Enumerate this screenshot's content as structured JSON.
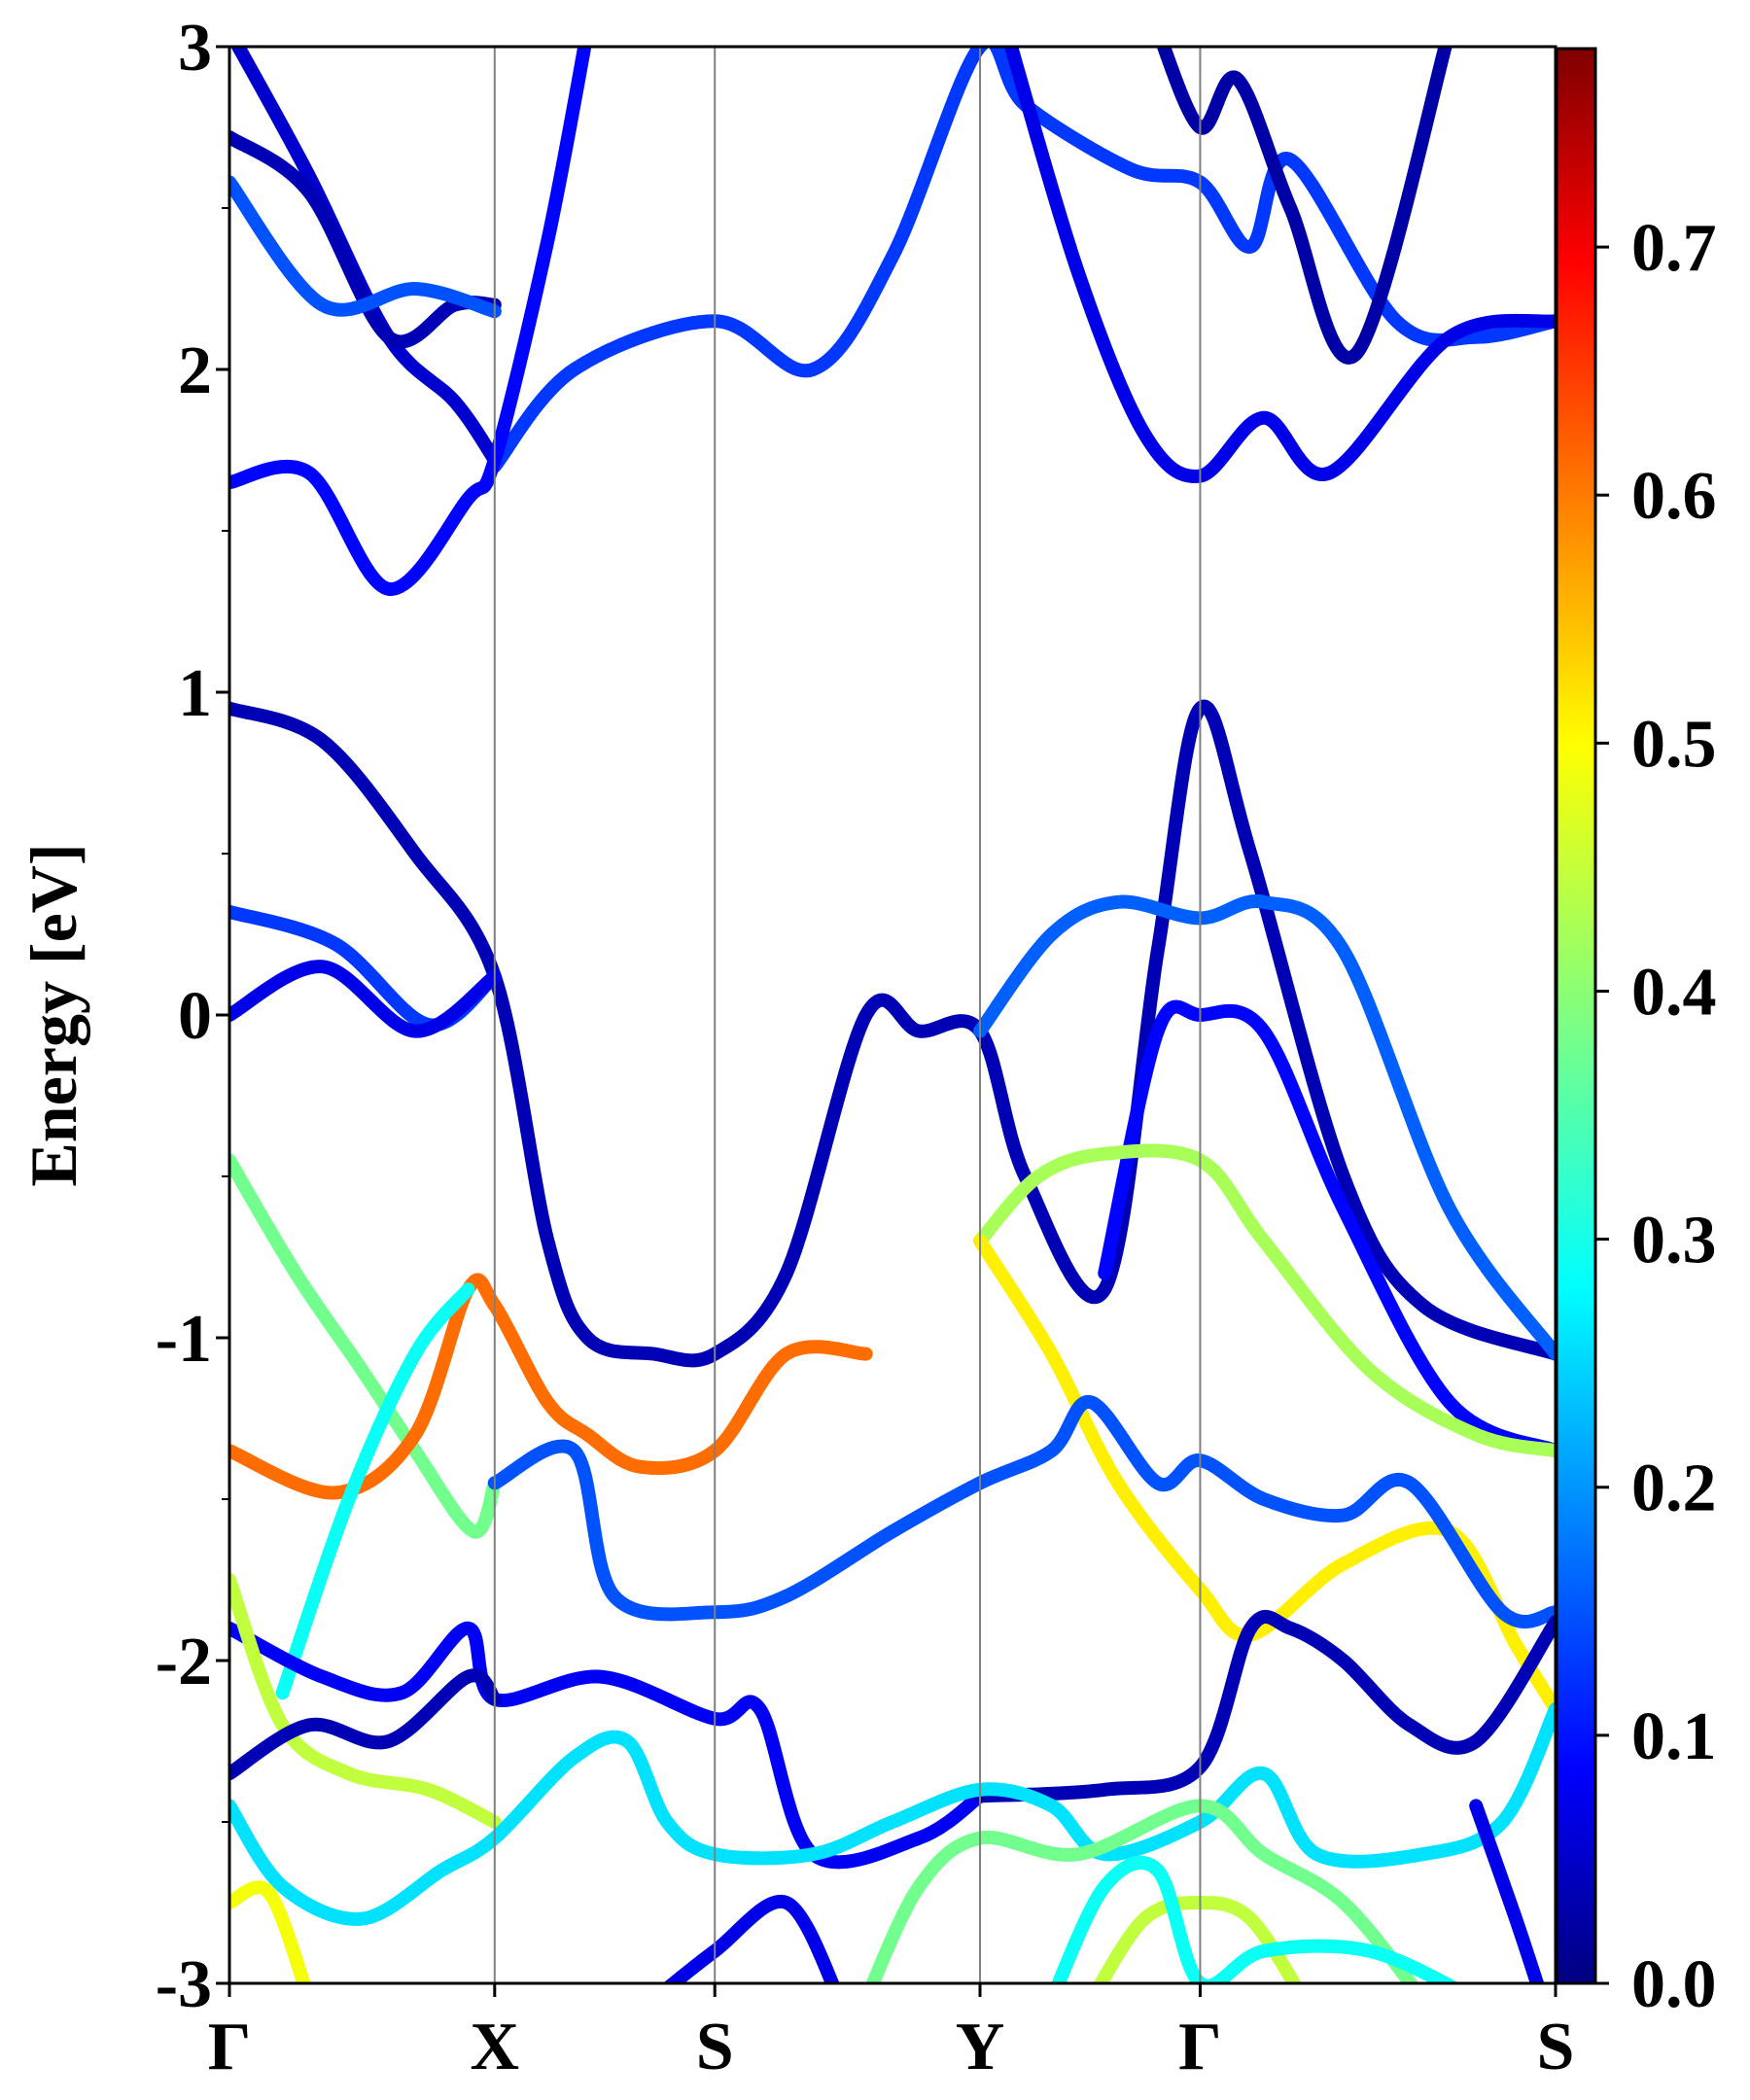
{
  "chart_data": {
    "type": "line",
    "title": "",
    "xlabel": "",
    "ylabel": "Energy [eV]",
    "ylim": [
      -3,
      3
    ],
    "yticks": [
      {
        "value": 3,
        "label": "3"
      },
      {
        "value": 2,
        "label": "2"
      },
      {
        "value": 1,
        "label": "1"
      },
      {
        "value": 0,
        "label": "0"
      },
      {
        "value": -1,
        "label": "-1"
      },
      {
        "value": -2,
        "label": "-2"
      },
      {
        "value": -3,
        "label": "-3"
      }
    ],
    "k_points": [
      {
        "label": "Γ",
        "position": 0.0
      },
      {
        "label": "X",
        "position": 1.0
      },
      {
        "label": "S",
        "position": 1.83
      },
      {
        "label": "Y",
        "position": 2.83
      },
      {
        "label": "Γ",
        "position": 3.66
      },
      {
        "label": "S",
        "position": 5.0
      }
    ],
    "colorbar": {
      "colormap": "jet",
      "range": [
        0.0,
        0.78
      ],
      "ticks": [
        {
          "value": 0.0,
          "label": "0.0"
        },
        {
          "value": 0.1,
          "label": "0.1"
        },
        {
          "value": 0.2,
          "label": "0.2"
        },
        {
          "value": 0.3,
          "label": "0.3"
        },
        {
          "value": 0.4,
          "label": "0.4"
        },
        {
          "value": 0.5,
          "label": "0.5"
        },
        {
          "value": 0.6,
          "label": "0.6"
        },
        {
          "value": 0.7,
          "label": "0.7"
        }
      ]
    },
    "series": [
      {
        "name": "cb-high-a",
        "weight": 0.06,
        "points": [
          [
            0,
            3.05
          ],
          [
            0.3,
            2.6
          ],
          [
            0.6,
            2.1
          ],
          [
            0.85,
            1.9
          ],
          [
            1.0,
            1.72
          ]
        ]
      },
      {
        "name": "cb-high-b",
        "weight": 0.04,
        "points": [
          [
            0,
            2.72
          ],
          [
            0.3,
            2.55
          ],
          [
            0.6,
            2.1
          ],
          [
            0.85,
            2.2
          ],
          [
            1.0,
            2.2
          ]
        ]
      },
      {
        "name": "cb-high-c",
        "weight": 0.16,
        "points": [
          [
            0,
            2.58
          ],
          [
            0.35,
            2.2
          ],
          [
            0.7,
            2.25
          ],
          [
            1.0,
            2.18
          ]
        ]
      },
      {
        "name": "cb-x-s-y",
        "weight": 0.14,
        "points": [
          [
            1.0,
            1.7
          ],
          [
            1.3,
            2.0
          ],
          [
            1.83,
            2.15
          ],
          [
            2.2,
            2.0
          ],
          [
            2.5,
            2.35
          ],
          [
            2.83,
            3.0
          ],
          [
            3.0,
            2.82
          ],
          [
            3.4,
            2.62
          ],
          [
            3.66,
            2.58
          ],
          [
            3.85,
            2.38
          ],
          [
            4.0,
            2.65
          ],
          [
            4.4,
            2.15
          ],
          [
            4.7,
            2.1
          ],
          [
            5.0,
            2.15
          ]
        ]
      },
      {
        "name": "cb-upper-left",
        "weight": 0.1,
        "points": [
          [
            0,
            1.65
          ],
          [
            0.3,
            1.68
          ],
          [
            0.6,
            1.32
          ],
          [
            0.9,
            1.6
          ],
          [
            1.0,
            1.72
          ],
          [
            1.2,
            2.4
          ],
          [
            1.35,
            3.05
          ]
        ]
      },
      {
        "name": "cb-y-gamma-a",
        "weight": 0.08,
        "points": [
          [
            2.93,
            3.05
          ],
          [
            3.2,
            2.3
          ],
          [
            3.45,
            1.8
          ],
          [
            3.66,
            1.67
          ],
          [
            3.9,
            1.85
          ],
          [
            4.15,
            1.68
          ],
          [
            4.6,
            2.1
          ],
          [
            5.0,
            2.15
          ]
        ]
      },
      {
        "name": "cb-gamma-top",
        "weight": 0.03,
        "points": [
          [
            3.5,
            3.05
          ],
          [
            3.66,
            2.75
          ],
          [
            3.8,
            2.9
          ],
          [
            4.0,
            2.5
          ],
          [
            4.25,
            2.05
          ],
          [
            4.6,
            3.05
          ]
        ]
      },
      {
        "name": "band-gx-0.95",
        "weight": 0.04,
        "points": [
          [
            0,
            0.95
          ],
          [
            0.35,
            0.85
          ],
          [
            0.7,
            0.5
          ],
          [
            1.0,
            0.12
          ],
          [
            1.2,
            -0.7
          ],
          [
            1.35,
            -1.0
          ],
          [
            1.6,
            -1.05
          ],
          [
            1.83,
            -1.05
          ],
          [
            2.1,
            -0.8
          ],
          [
            2.4,
            0.0
          ],
          [
            2.6,
            -0.05
          ],
          [
            2.83,
            -0.05
          ],
          [
            3.0,
            -0.5
          ],
          [
            3.3,
            -0.85
          ],
          [
            3.5,
            0.2
          ],
          [
            3.66,
            0.95
          ],
          [
            3.85,
            0.5
          ],
          [
            4.2,
            -0.5
          ],
          [
            4.5,
            -0.9
          ],
          [
            5.0,
            -1.05
          ]
        ]
      },
      {
        "name": "band-gx-0.3",
        "weight": 0.14,
        "points": [
          [
            0,
            0.32
          ],
          [
            0.4,
            0.22
          ],
          [
            0.75,
            -0.03
          ],
          [
            1.0,
            0.12
          ]
        ]
      },
      {
        "name": "band-gx-0.0",
        "weight": 0.08,
        "points": [
          [
            0,
            0.0
          ],
          [
            0.35,
            0.15
          ],
          [
            0.7,
            -0.05
          ],
          [
            1.0,
            0.12
          ]
        ]
      },
      {
        "name": "band-y-gamma-0.3",
        "weight": 0.17,
        "points": [
          [
            2.83,
            -0.05
          ],
          [
            3.1,
            0.25
          ],
          [
            3.35,
            0.35
          ],
          [
            3.66,
            0.3
          ],
          [
            3.9,
            0.35
          ],
          [
            4.2,
            0.2
          ],
          [
            4.6,
            -0.6
          ],
          [
            5.0,
            -1.05
          ]
        ]
      },
      {
        "name": "band-gamma-0.0",
        "weight": 0.1,
        "points": [
          [
            3.3,
            -0.8
          ],
          [
            3.5,
            -0.05
          ],
          [
            3.66,
            0.0
          ],
          [
            3.9,
            -0.05
          ],
          [
            4.2,
            -0.6
          ],
          [
            4.6,
            -1.2
          ],
          [
            5.0,
            -1.35
          ]
        ]
      },
      {
        "name": "band-green-left",
        "weight": 0.38,
        "points": [
          [
            0,
            -0.45
          ],
          [
            0.25,
            -0.8
          ],
          [
            0.5,
            -1.1
          ],
          [
            0.7,
            -1.35
          ],
          [
            0.92,
            -1.6
          ],
          [
            1.0,
            -1.45
          ]
        ]
      },
      {
        "name": "band-orange-left",
        "weight": 0.6,
        "points": [
          [
            0,
            -1.35
          ],
          [
            0.4,
            -1.48
          ],
          [
            0.7,
            -1.3
          ],
          [
            0.9,
            -0.85
          ],
          [
            1.0,
            -0.9
          ],
          [
            1.2,
            -1.2
          ],
          [
            1.35,
            -1.3
          ],
          [
            1.55,
            -1.4
          ],
          [
            1.83,
            -1.35
          ],
          [
            2.1,
            -1.05
          ],
          [
            2.4,
            -1.05
          ]
        ]
      },
      {
        "name": "band-cyan-cross",
        "weight": 0.3,
        "points": [
          [
            0.2,
            -2.1
          ],
          [
            0.45,
            -1.5
          ],
          [
            0.7,
            -1.05
          ],
          [
            0.9,
            -0.85
          ]
        ]
      },
      {
        "name": "band-y-gamma-green",
        "weight": 0.42,
        "points": [
          [
            2.83,
            -0.7
          ],
          [
            3.05,
            -0.5
          ],
          [
            3.3,
            -0.43
          ],
          [
            3.66,
            -0.45
          ],
          [
            3.9,
            -0.7
          ],
          [
            4.3,
            -1.1
          ],
          [
            4.7,
            -1.3
          ],
          [
            5.0,
            -1.35
          ]
        ]
      },
      {
        "name": "band-y-gamma-yellow",
        "weight": 0.5,
        "points": [
          [
            2.83,
            -0.7
          ],
          [
            3.1,
            -1.05
          ],
          [
            3.35,
            -1.45
          ],
          [
            3.66,
            -1.78
          ],
          [
            3.85,
            -1.92
          ],
          [
            4.2,
            -1.7
          ],
          [
            4.6,
            -1.6
          ],
          [
            4.85,
            -1.95
          ],
          [
            5.0,
            -2.15
          ]
        ]
      },
      {
        "name": "band-1.45-mid",
        "weight": 0.16,
        "points": [
          [
            1.0,
            -1.45
          ],
          [
            1.3,
            -1.35
          ],
          [
            1.45,
            -1.8
          ],
          [
            1.83,
            -1.85
          ],
          [
            2.1,
            -1.8
          ],
          [
            2.5,
            -1.6
          ],
          [
            2.83,
            -1.45
          ],
          [
            3.1,
            -1.35
          ],
          [
            3.25,
            -1.2
          ],
          [
            3.5,
            -1.45
          ],
          [
            3.66,
            -1.38
          ],
          [
            3.9,
            -1.5
          ],
          [
            4.2,
            -1.55
          ],
          [
            4.45,
            -1.45
          ],
          [
            4.8,
            -1.85
          ],
          [
            5.0,
            -1.85
          ]
        ]
      },
      {
        "name": "band-2.0-left",
        "weight": 0.09,
        "points": [
          [
            0,
            -1.9
          ],
          [
            0.35,
            -2.05
          ],
          [
            0.65,
            -2.1
          ],
          [
            0.9,
            -1.9
          ],
          [
            1.0,
            -2.12
          ],
          [
            1.4,
            -2.05
          ],
          [
            1.83,
            -2.18
          ],
          [
            2.0,
            -2.15
          ],
          [
            2.2,
            -2.6
          ],
          [
            2.6,
            -2.55
          ],
          [
            2.83,
            -2.42
          ]
        ]
      },
      {
        "name": "band-green-low",
        "weight": 0.44,
        "points": [
          [
            0,
            -1.75
          ],
          [
            0.2,
            -2.2
          ],
          [
            0.45,
            -2.35
          ],
          [
            0.75,
            -2.4
          ],
          [
            1.0,
            -2.5
          ]
        ]
      },
      {
        "name": "band-2.3-left",
        "weight": 0.04,
        "points": [
          [
            0,
            -2.35
          ],
          [
            0.3,
            -2.2
          ],
          [
            0.6,
            -2.25
          ],
          [
            0.9,
            -2.05
          ],
          [
            1.0,
            -2.12
          ]
        ]
      },
      {
        "name": "band-gamma-dark",
        "weight": 0.04,
        "points": [
          [
            2.83,
            -2.42
          ],
          [
            3.3,
            -2.4
          ],
          [
            3.66,
            -2.33
          ],
          [
            3.85,
            -1.9
          ],
          [
            4.0,
            -1.9
          ],
          [
            4.2,
            -2.0
          ],
          [
            4.45,
            -2.2
          ],
          [
            4.7,
            -2.25
          ],
          [
            5.0,
            -1.88
          ]
        ]
      },
      {
        "name": "band-cyan-low",
        "weight": 0.27,
        "points": [
          [
            0,
            -2.45
          ],
          [
            0.2,
            -2.7
          ],
          [
            0.5,
            -2.8
          ],
          [
            0.8,
            -2.65
          ],
          [
            1.0,
            -2.55
          ],
          [
            1.3,
            -2.3
          ],
          [
            1.5,
            -2.25
          ],
          [
            1.65,
            -2.5
          ],
          [
            1.83,
            -2.6
          ],
          [
            2.2,
            -2.6
          ],
          [
            2.5,
            -2.5
          ],
          [
            2.83,
            -2.4
          ],
          [
            3.1,
            -2.45
          ],
          [
            3.3,
            -2.6
          ],
          [
            3.66,
            -2.5
          ],
          [
            3.9,
            -2.35
          ],
          [
            4.1,
            -2.6
          ],
          [
            4.5,
            -2.6
          ],
          [
            4.8,
            -2.5
          ],
          [
            5.0,
            -2.15
          ]
        ]
      },
      {
        "name": "band-green-bottom",
        "weight": 0.38,
        "points": [
          [
            2.4,
            -3.05
          ],
          [
            2.6,
            -2.7
          ],
          [
            2.83,
            -2.55
          ],
          [
            3.2,
            -2.6
          ],
          [
            3.66,
            -2.45
          ],
          [
            3.9,
            -2.6
          ],
          [
            4.2,
            -2.75
          ],
          [
            4.5,
            -3.05
          ]
        ]
      },
      {
        "name": "band-yellow-bottom",
        "weight": 0.48,
        "points": [
          [
            0,
            -2.75
          ],
          [
            0.15,
            -2.72
          ],
          [
            0.3,
            -3.05
          ]
        ]
      },
      {
        "name": "band-blue-bottom",
        "weight": 0.08,
        "points": [
          [
            1.6,
            -3.05
          ],
          [
            1.83,
            -2.9
          ],
          [
            2.1,
            -2.75
          ],
          [
            2.3,
            -3.05
          ]
        ]
      },
      {
        "name": "band-gamma-bottom",
        "weight": 0.44,
        "points": [
          [
            3.25,
            -3.05
          ],
          [
            3.45,
            -2.8
          ],
          [
            3.66,
            -2.75
          ],
          [
            3.85,
            -2.8
          ],
          [
            4.05,
            -3.05
          ]
        ]
      },
      {
        "name": "band-cyan-bottom2",
        "weight": 0.3,
        "points": [
          [
            3.1,
            -3.05
          ],
          [
            3.3,
            -2.7
          ],
          [
            3.5,
            -2.65
          ],
          [
            3.66,
            -3.0
          ],
          [
            3.9,
            -2.9
          ],
          [
            4.3,
            -2.9
          ],
          [
            4.7,
            -3.05
          ]
        ]
      },
      {
        "name": "band-blue-right",
        "weight": 0.08,
        "points": [
          [
            4.7,
            -2.45
          ],
          [
            4.85,
            -2.8
          ],
          [
            4.95,
            -3.05
          ]
        ]
      }
    ]
  }
}
